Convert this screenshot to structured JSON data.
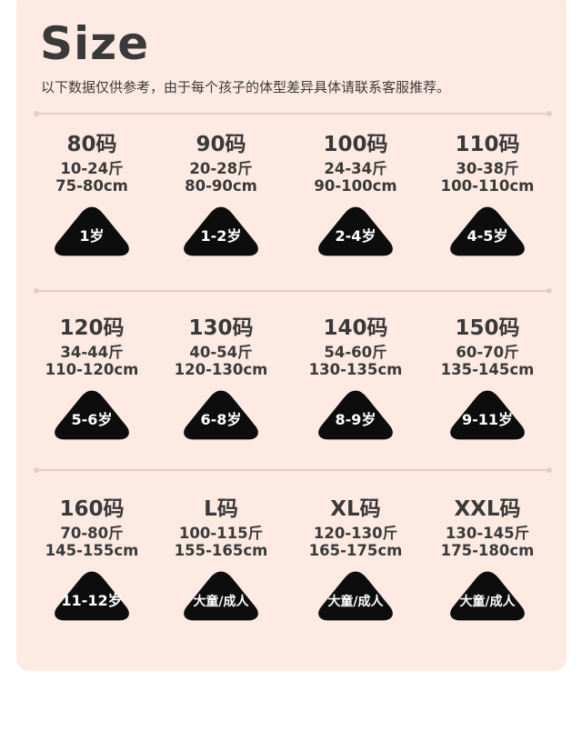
{
  "title": "Size",
  "subtitle": "以下数据仅供参考，由于每个孩子的体型差异具体请联系客服推荐。",
  "colors": {
    "card_bg": "#fdebe3",
    "badge_bg": "#0d0d0d",
    "text": "#3a3a3a",
    "divider": "#e2cdc4"
  },
  "badge_icon": "rounded-triangle",
  "sizes": [
    {
      "size": "80码",
      "weight": "10-24斤",
      "height": "75-80cm",
      "age": "1岁"
    },
    {
      "size": "90码",
      "weight": "20-28斤",
      "height": "80-90cm",
      "age": "1-2岁"
    },
    {
      "size": "100码",
      "weight": "24-34斤",
      "height": "90-100cm",
      "age": "2-4岁"
    },
    {
      "size": "110码",
      "weight": "30-38斤",
      "height": "100-110cm",
      "age": "4-5岁"
    },
    {
      "size": "120码",
      "weight": "34-44斤",
      "height": "110-120cm",
      "age": "5-6岁"
    },
    {
      "size": "130码",
      "weight": "40-54斤",
      "height": "120-130cm",
      "age": "6-8岁"
    },
    {
      "size": "140码",
      "weight": "54-60斤",
      "height": "130-135cm",
      "age": "8-9岁"
    },
    {
      "size": "150码",
      "weight": "60-70斤",
      "height": "135-145cm",
      "age": "9-11岁"
    },
    {
      "size": "160码",
      "weight": "70-80斤",
      "height": "145-155cm",
      "age": "11-12岁"
    },
    {
      "size": "L码",
      "weight": "100-115斤",
      "height": "155-165cm",
      "age": "大童/成人"
    },
    {
      "size": "XL码",
      "weight": "120-130斤",
      "height": "165-175cm",
      "age": "大童/成人"
    },
    {
      "size": "XXL码",
      "weight": "130-145斤",
      "height": "175-180cm",
      "age": "大童/成人"
    }
  ]
}
